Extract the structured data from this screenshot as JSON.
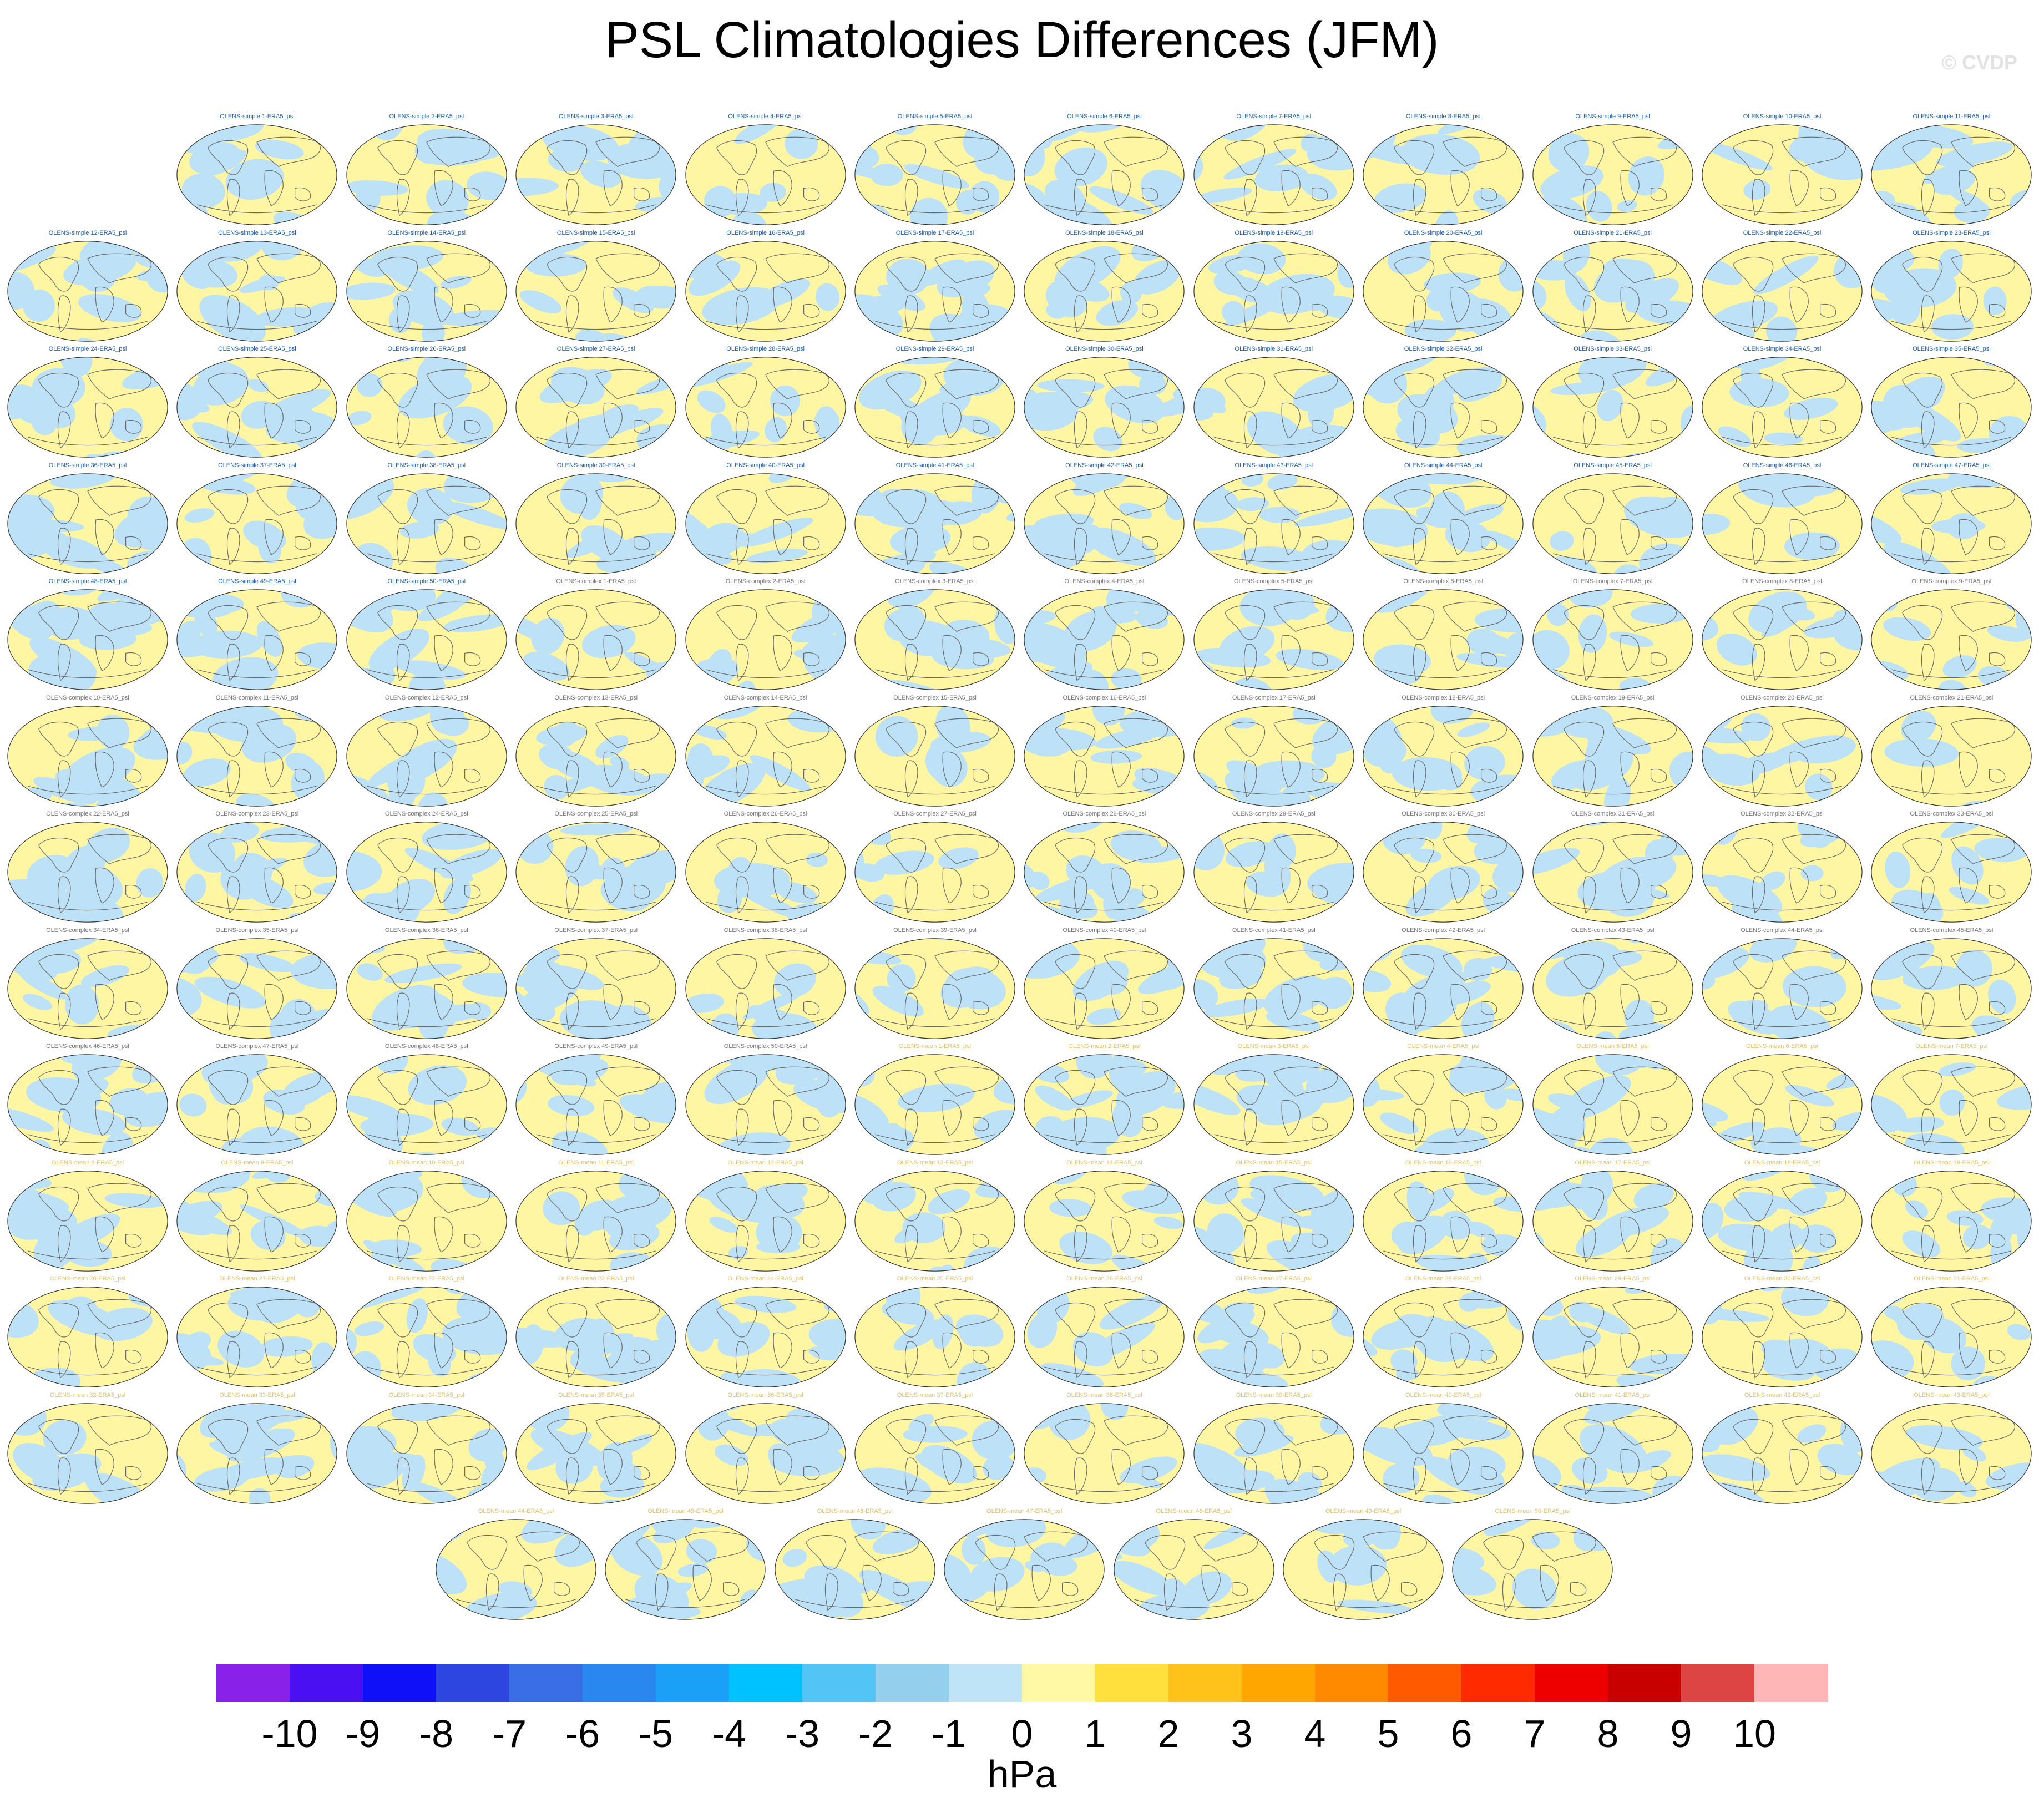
{
  "title": "PSL Climatologies Differences (JFM)",
  "watermark": "© CVDP",
  "colorbar": {
    "units": "hPa",
    "tick_labels": [
      "-10",
      "-9",
      "-8",
      "-7",
      "-6",
      "-5",
      "-4",
      "-3",
      "-2",
      "-1",
      "0",
      "1",
      "2",
      "3",
      "4",
      "5",
      "6",
      "7",
      "8",
      "9",
      "10"
    ],
    "colors": [
      "#8a21e8",
      "#4a10f2",
      "#1010f8",
      "#2d46e0",
      "#3a6ee6",
      "#2a87f0",
      "#1aa0f6",
      "#00c2ff",
      "#52c4f5",
      "#95cfee",
      "#bfe3f7",
      "#fff9a6",
      "#ffe03c",
      "#ffc21a",
      "#ffa700",
      "#ff8a00",
      "#ff5a00",
      "#ff2a00",
      "#ee0000",
      "#c80000",
      "#dd4444",
      "#ffb6b6"
    ]
  },
  "panel_colors": {
    "simple": "#1a5fb4",
    "complex": "#777777",
    "mean": "#e0c266",
    "positive": "#fff6a3",
    "negative": "#bde1f6",
    "coast": "#6a6a6a"
  },
  "panels": [
    "OLENS-simple 1-ERA5_psl",
    "OLENS-simple 2-ERA5_psl",
    "OLENS-simple 3-ERA5_psl",
    "OLENS-simple 4-ERA5_psl",
    "OLENS-simple 5-ERA5_psl",
    "OLENS-simple 6-ERA5_psl",
    "OLENS-simple 7-ERA5_psl",
    "OLENS-simple 8-ERA5_psl",
    "OLENS-simple 9-ERA5_psl",
    "OLENS-simple 10-ERA5_psl",
    "OLENS-simple 11-ERA5_psl",
    "OLENS-simple 12-ERA5_psl",
    "OLENS-simple 13-ERA5_psl",
    "OLENS-simple 14-ERA5_psl",
    "OLENS-simple 15-ERA5_psl",
    "OLENS-simple 16-ERA5_psl",
    "OLENS-simple 17-ERA5_psl",
    "OLENS-simple 18-ERA5_psl",
    "OLENS-simple 19-ERA5_psl",
    "OLENS-simple 20-ERA5_psl",
    "OLENS-simple 21-ERA5_psl",
    "OLENS-simple 22-ERA5_psl",
    "OLENS-simple 23-ERA5_psl",
    "OLENS-simple 24-ERA5_psl",
    "OLENS-simple 25-ERA5_psl",
    "OLENS-simple 26-ERA5_psl",
    "OLENS-simple 27-ERA5_psl",
    "OLENS-simple 28-ERA5_psl",
    "OLENS-simple 29-ERA5_psl",
    "OLENS-simple 30-ERA5_psl",
    "OLENS-simple 31-ERA5_psl",
    "OLENS-simple 32-ERA5_psl",
    "OLENS-simple 33-ERA5_psl",
    "OLENS-simple 34-ERA5_psl",
    "OLENS-simple 35-ERA5_psl",
    "OLENS-simple 36-ERA5_psl",
    "OLENS-simple 37-ERA5_psl",
    "OLENS-simple 38-ERA5_psl",
    "OLENS-simple 39-ERA5_psl",
    "OLENS-simple 40-ERA5_psl",
    "OLENS-simple 41-ERA5_psl",
    "OLENS-simple 42-ERA5_psl",
    "OLENS-simple 43-ERA5_psl",
    "OLENS-simple 44-ERA5_psl",
    "OLENS-simple 45-ERA5_psl",
    "OLENS-simple 46-ERA5_psl",
    "OLENS-simple 47-ERA5_psl",
    "OLENS-simple 48-ERA5_psl",
    "OLENS-simple 49-ERA5_psl",
    "OLENS-simple 50-ERA5_psl",
    "OLENS-complex 1-ERA5_psl",
    "OLENS-complex 2-ERA5_psl",
    "OLENS-complex 3-ERA5_psl",
    "OLENS-complex 4-ERA5_psl",
    "OLENS-complex 5-ERA5_psl",
    "OLENS-complex 6-ERA5_psl",
    "OLENS-complex 7-ERA5_psl",
    "OLENS-complex 8-ERA5_psl",
    "OLENS-complex 9-ERA5_psl",
    "OLENS-complex 10-ERA5_psl",
    "OLENS-complex 11-ERA5_psl",
    "OLENS-complex 12-ERA5_psl",
    "OLENS-complex 13-ERA5_psl",
    "OLENS-complex 14-ERA5_psl",
    "OLENS-complex 15-ERA5_psl",
    "OLENS-complex 16-ERA5_psl",
    "OLENS-complex 17-ERA5_psl",
    "OLENS-complex 18-ERA5_psl",
    "OLENS-complex 19-ERA5_psl",
    "OLENS-complex 20-ERA5_psl",
    "OLENS-complex 21-ERA5_psl",
    "OLENS-complex 22-ERA5_psl",
    "OLENS-complex 23-ERA5_psl",
    "OLENS-complex 24-ERA5_psl",
    "OLENS-complex 25-ERA5_psl",
    "OLENS-complex 26-ERA5_psl",
    "OLENS-complex 27-ERA5_psl",
    "OLENS-complex 28-ERA5_psl",
    "OLENS-complex 29-ERA5_psl",
    "OLENS-complex 30-ERA5_psl",
    "OLENS-complex 31-ERA5_psl",
    "OLENS-complex 32-ERA5_psl",
    "OLENS-complex 33-ERA5_psl",
    "OLENS-complex 34-ERA5_psl",
    "OLENS-complex 35-ERA5_psl",
    "OLENS-complex 36-ERA5_psl",
    "OLENS-complex 37-ERA5_psl",
    "OLENS-complex 38-ERA5_psl",
    "OLENS-complex 39-ERA5_psl",
    "OLENS-complex 40-ERA5_psl",
    "OLENS-complex 41-ERA5_psl",
    "OLENS-complex 42-ERA5_psl",
    "OLENS-complex 43-ERA5_psl",
    "OLENS-complex 44-ERA5_psl",
    "OLENS-complex 45-ERA5_psl",
    "OLENS-complex 46-ERA5_psl",
    "OLENS-complex 47-ERA5_psl",
    "OLENS-complex 48-ERA5_psl",
    "OLENS-complex 49-ERA5_psl",
    "OLENS-complex 50-ERA5_psl",
    "OLENS-mean 1-ERA5_psl",
    "OLENS-mean 2-ERA5_psl",
    "OLENS-mean 3-ERA5_psl",
    "OLENS-mean 4-ERA5_psl",
    "OLENS-mean 5-ERA5_psl",
    "OLENS-mean 6-ERA5_psl",
    "OLENS-mean 7-ERA5_psl",
    "OLENS-mean 8-ERA5_psl",
    "OLENS-mean 9-ERA5_psl",
    "OLENS-mean 10-ERA5_psl",
    "OLENS-mean 11-ERA5_psl",
    "OLENS-mean 12-ERA5_psl",
    "OLENS-mean 13-ERA5_psl",
    "OLENS-mean 14-ERA5_psl",
    "OLENS-mean 15-ERA5_psl",
    "OLENS-mean 16-ERA5_psl",
    "OLENS-mean 17-ERA5_psl",
    "OLENS-mean 18-ERA5_psl",
    "OLENS-mean 19-ERA5_psl",
    "OLENS-mean 20-ERA5_psl",
    "OLENS-mean 21-ERA5_psl",
    "OLENS-mean 22-ERA5_psl",
    "OLENS-mean 23-ERA5_psl",
    "OLENS-mean 24-ERA5_psl",
    "OLENS-mean 25-ERA5_psl",
    "OLENS-mean 26-ERA5_psl",
    "OLENS-mean 27-ERA5_psl",
    "OLENS-mean 28-ERA5_psl",
    "OLENS-mean 29-ERA5_psl",
    "OLENS-mean 30-ERA5_psl",
    "OLENS-mean 31-ERA5_psl",
    "OLENS-mean 32-ERA5_psl",
    "OLENS-mean 33-ERA5_psl",
    "OLENS-mean 34-ERA5_psl",
    "OLENS-mean 35-ERA5_psl",
    "OLENS-mean 36-ERA5_psl",
    "OLENS-mean 37-ERA5_psl",
    "OLENS-mean 38-ERA5_psl",
    "OLENS-mean 39-ERA5_psl",
    "OLENS-mean 40-ERA5_psl",
    "OLENS-mean 41-ERA5_psl",
    "OLENS-mean 42-ERA5_psl",
    "OLENS-mean 43-ERA5_psl",
    "OLENS-mean 44-ERA5_psl",
    "OLENS-mean 45-ERA5_psl",
    "OLENS-mean 46-ERA5_psl",
    "OLENS-mean 47-ERA5_psl",
    "OLENS-mean 48-ERA5_psl",
    "OLENS-mean 49-ERA5_psl",
    "OLENS-mean 50-ERA5_psl"
  ]
}
